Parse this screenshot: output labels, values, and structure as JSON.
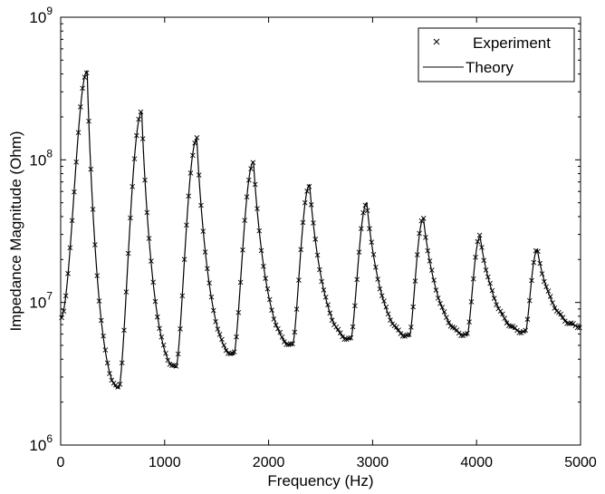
{
  "chart_data": {
    "type": "line",
    "xlabel": "Frequency (Hz)",
    "ylabel": "Impedance Magnitude (Ohm)",
    "xlim": [
      0,
      5000
    ],
    "ylim": [
      1000000,
      1000000000
    ],
    "yscale": "log",
    "xticks": [
      "0",
      "1000",
      "2000",
      "3000",
      "4000",
      "5000"
    ],
    "ytick_bases": [
      "10",
      "10",
      "10",
      "10"
    ],
    "ytick_exponents": [
      "6",
      "7",
      "8",
      "9"
    ],
    "ytick_values": [
      1000000,
      10000000,
      100000000,
      1000000000
    ],
    "grid": false,
    "legend_position": "top-right",
    "legend": [
      "Experiment",
      "Theory"
    ],
    "series": [
      {
        "name": "Experiment",
        "marker": "x",
        "color": "#000000"
      },
      {
        "name": "Theory",
        "marker": "line",
        "color": "#000000"
      }
    ],
    "resonance_model": {
      "peaks_hz": [
        255,
        780,
        1310,
        1855,
        2395,
        2945,
        3490,
        4035,
        4585
      ],
      "peaks_ohm": [
        420000000,
        215000000,
        140000000,
        97000000,
        67000000,
        50000000,
        39000000,
        29000000,
        23500000
      ],
      "antiresonances_hz": [
        560,
        1110,
        1665,
        2230,
        2790,
        3355,
        3910,
        4470
      ],
      "antiresonances_ohm": [
        2500000,
        3500000,
        4300000,
        5000000,
        5500000,
        5800000,
        5900000,
        6200000
      ],
      "start": [
        0,
        7800000
      ],
      "end": [
        5000,
        6800000
      ]
    }
  }
}
